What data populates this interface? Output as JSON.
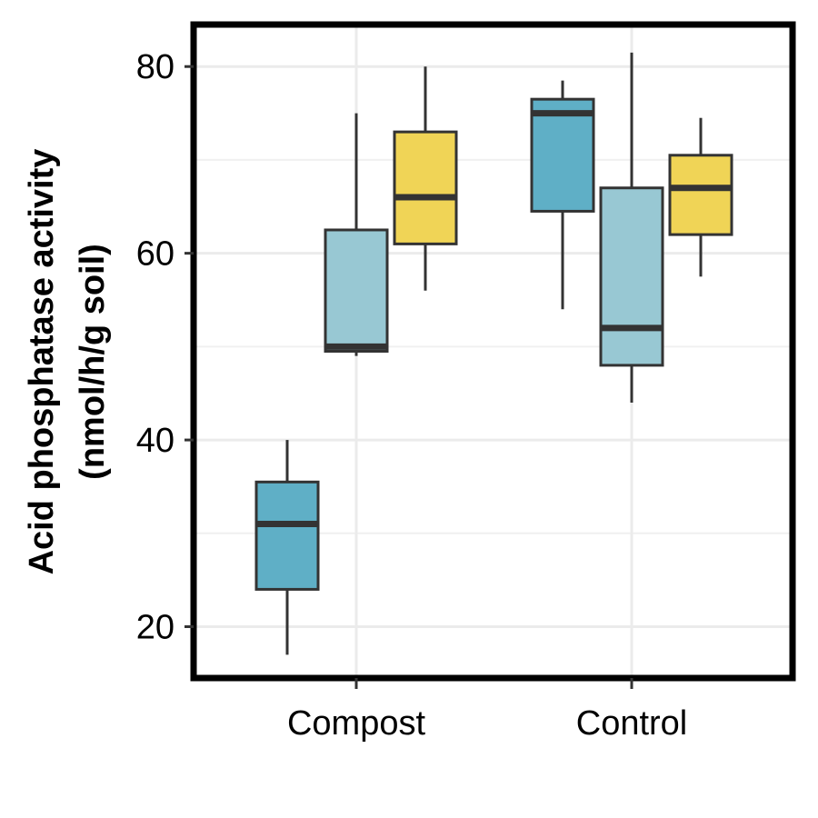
{
  "chart_data": {
    "type": "boxplot",
    "title": "",
    "xlabel": "",
    "ylabel_line1": "Acid phosphatase activity",
    "ylabel_line2": "(nmol/h/g soil)",
    "ylim": [
      14.5,
      84.5
    ],
    "yticks": [
      20,
      40,
      60,
      80
    ],
    "grid": true,
    "legend": "none",
    "categories": [
      "Compost",
      "Control"
    ],
    "series_colors": [
      "#5fafc6",
      "#98c8d3",
      "#f0d456"
    ],
    "boxes": [
      {
        "category": "Compost",
        "series": 0,
        "min": 17.0,
        "q1": 24.0,
        "median": 31.0,
        "q3": 35.5,
        "max": 40.0
      },
      {
        "category": "Compost",
        "series": 1,
        "min": 49.0,
        "q1": 49.5,
        "median": 50.0,
        "q3": 62.5,
        "max": 75.0
      },
      {
        "category": "Compost",
        "series": 2,
        "min": 56.0,
        "q1": 61.0,
        "median": 66.0,
        "q3": 73.0,
        "max": 80.0
      },
      {
        "category": "Control",
        "series": 0,
        "min": 54.0,
        "q1": 64.5,
        "median": 75.0,
        "q3": 76.5,
        "max": 78.5
      },
      {
        "category": "Control",
        "series": 1,
        "min": 44.0,
        "q1": 48.0,
        "median": 52.0,
        "q3": 67.0,
        "max": 81.5
      },
      {
        "category": "Control",
        "series": 2,
        "min": 57.5,
        "q1": 62.0,
        "median": 67.0,
        "q3": 70.5,
        "max": 74.5
      }
    ]
  }
}
